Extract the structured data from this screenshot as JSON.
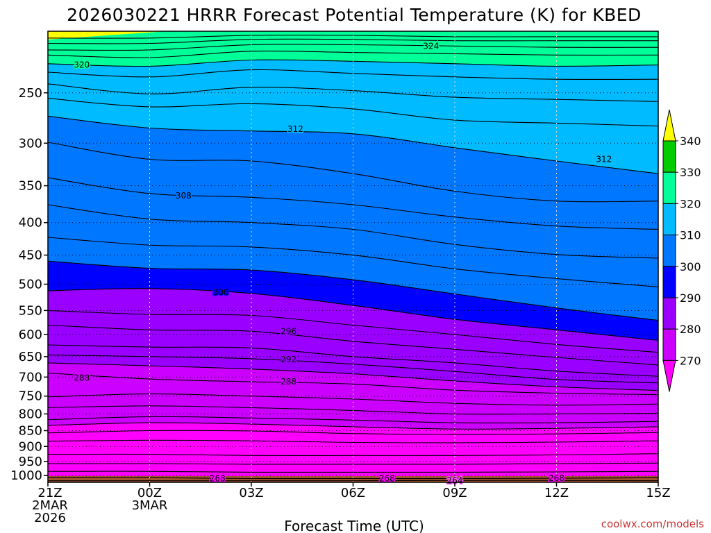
{
  "colors": {
    "bands": {
      "260": "#ff55ff",
      "270": "#ff00ff",
      "280": "#cc00ff",
      "290": "#9900ff",
      "300": "#0000ff",
      "305": "#0077ff",
      "310": "#00bbff",
      "320": "#00ff99",
      "330": "#00cc00",
      "340": "#ffff00"
    },
    "ground": "#a0522d",
    "credit": "#cc3333"
  },
  "chart_data": {
    "type": "contour",
    "title": "2026030221 HRRR Forecast Potential Temperature (K) for KBED",
    "xlabel": "Forecast Time (UTC)",
    "ylabel": "",
    "credit": "coolwx.com/models",
    "x_range_hours": [
      0,
      18
    ],
    "y_range_hpa": [
      1025,
      200
    ],
    "y_scale": "log-pressure",
    "grid": true,
    "x_ticks": [
      {
        "hour": 0,
        "label": [
          "21Z",
          "2MAR",
          "2026"
        ]
      },
      {
        "hour": 3,
        "label": [
          "00Z",
          "3MAR"
        ]
      },
      {
        "hour": 6,
        "label": [
          "03Z"
        ]
      },
      {
        "hour": 9,
        "label": [
          "06Z"
        ]
      },
      {
        "hour": 12,
        "label": [
          "09Z"
        ]
      },
      {
        "hour": 15,
        "label": [
          "12Z"
        ]
      },
      {
        "hour": 18,
        "label": [
          "15Z"
        ]
      }
    ],
    "y_ticks": [
      250,
      300,
      350,
      400,
      450,
      500,
      550,
      600,
      650,
      700,
      750,
      800,
      850,
      900,
      950,
      1000
    ],
    "x_samples": [
      0,
      3,
      6,
      9,
      12,
      15,
      18
    ],
    "isentropes": [
      {
        "theta": 264,
        "p": [
          1019,
          1019,
          1019,
          1019,
          1018,
          1018,
          1019
        ]
      },
      {
        "theta": 268,
        "p": [
          1008,
          1008,
          1011,
          1011,
          1011,
          1010,
          1008
        ]
      },
      {
        "theta": 270,
        "p": [
          985,
          985,
          988,
          988,
          988,
          987,
          985
        ]
      },
      {
        "theta": 272,
        "p": [
          958,
          958,
          960,
          960,
          960,
          958,
          956
        ]
      },
      {
        "theta": 274,
        "p": [
          926,
          926,
          930,
          930,
          930,
          928,
          924
        ]
      },
      {
        "theta": 276,
        "p": [
          883,
          880,
          882,
          887,
          888,
          886,
          882
        ]
      },
      {
        "theta": 278,
        "p": [
          857,
          850,
          851,
          859,
          862,
          860,
          856
        ]
      },
      {
        "theta": 280,
        "p": [
          834,
          826,
          830,
          838,
          845,
          843,
          838
        ]
      },
      {
        "theta": 282,
        "p": [
          817,
          808,
          812,
          818,
          826,
          826,
          822
        ]
      },
      {
        "theta": 284,
        "p": [
          782,
          777,
          782,
          790,
          800,
          800,
          798
        ]
      },
      {
        "theta": 286,
        "p": [
          752,
          744,
          750,
          758,
          770,
          775,
          772
        ]
      },
      {
        "theta": 288,
        "p": [
          690,
          705,
          712,
          718,
          734,
          742,
          746
        ]
      },
      {
        "theta": 290,
        "p": [
          665,
          672,
          680,
          692,
          710,
          725,
          735
        ]
      },
      {
        "theta": 292,
        "p": [
          646,
          650,
          655,
          668,
          686,
          706,
          715
        ]
      },
      {
        "theta": 294,
        "p": [
          623,
          628,
          630,
          650,
          665,
          685,
          698
        ]
      },
      {
        "theta": 296,
        "p": [
          580,
          590,
          593,
          615,
          633,
          652,
          670
        ]
      },
      {
        "theta": 298,
        "p": [
          550,
          558,
          560,
          580,
          600,
          622,
          640
        ]
      },
      {
        "theta": 300,
        "p": [
          512,
          508,
          517,
          540,
          568,
          590,
          613
        ]
      },
      {
        "theta": 302,
        "p": [
          460,
          472,
          475,
          492,
          518,
          545,
          570
        ]
      },
      {
        "theta": 304,
        "p": [
          422,
          434,
          437,
          450,
          473,
          490,
          505
        ]
      },
      {
        "theta": 306,
        "p": [
          375,
          395,
          400,
          410,
          433,
          449,
          455
        ]
      },
      {
        "theta": 308,
        "p": [
          340,
          360,
          365,
          375,
          392,
          405,
          410
        ]
      },
      {
        "theta": 310,
        "p": [
          299,
          318,
          320,
          335,
          357,
          370,
          370
        ]
      },
      {
        "theta": 312,
        "p": [
          272,
          284,
          287,
          290,
          305,
          320,
          335
        ]
      },
      {
        "theta": 314,
        "p": [
          255,
          263,
          260,
          265,
          276,
          279,
          282
        ]
      },
      {
        "theta": 316,
        "p": [
          242,
          251,
          245,
          248,
          254,
          256,
          258
        ]
      },
      {
        "theta": 318,
        "p": [
          232,
          236,
          230,
          233,
          236,
          238,
          238
        ]
      },
      {
        "theta": 320,
        "p": [
          225,
          227,
          222,
          223,
          225,
          227,
          226
        ]
      },
      {
        "theta": 322,
        "p": [
          218,
          220,
          215,
          216,
          217,
          218,
          218
        ]
      },
      {
        "theta": 324,
        "p": [
          214,
          214,
          210,
          210,
          211,
          212,
          212
        ]
      },
      {
        "theta": 326,
        "p": [
          209,
          209,
          206,
          206,
          207,
          207,
          207
        ]
      },
      {
        "theta": 328,
        "p": [
          205,
          205,
          203,
          203,
          204,
          204,
          204
        ]
      }
    ],
    "contour_labels": [
      {
        "text": "324",
        "hour": 11.3,
        "p": 211
      },
      {
        "text": "320",
        "hour": 1.0,
        "p": 226
      },
      {
        "text": "312",
        "hour": 7.3,
        "p": 285
      },
      {
        "text": "312",
        "hour": 16.4,
        "p": 318
      },
      {
        "text": "308",
        "hour": 4.0,
        "p": 363
      },
      {
        "text": "300",
        "hour": 5.1,
        "p": 515
      },
      {
        "text": "296",
        "hour": 7.1,
        "p": 593
      },
      {
        "text": "292",
        "hour": 7.1,
        "p": 657
      },
      {
        "text": "288",
        "hour": 1.0,
        "p": 702
      },
      {
        "text": "288",
        "hour": 7.1,
        "p": 712
      },
      {
        "text": "268",
        "hour": 5.0,
        "p": 1011
      },
      {
        "text": "268",
        "hour": 10.0,
        "p": 1011
      },
      {
        "text": "268",
        "hour": 15.0,
        "p": 1010
      },
      {
        "text": "264",
        "hour": 12.0,
        "p": 1019
      }
    ],
    "colorbar": {
      "ticks": [
        "340",
        "330",
        "320",
        "310",
        "300",
        "290",
        "280",
        "270"
      ],
      "colors": [
        "#ffff00",
        "#00cc00",
        "#00ff99",
        "#00bbff",
        "#0077ff",
        "#0000ff",
        "#9900ff",
        "#cc00ff",
        "#ff00ff"
      ]
    }
  }
}
